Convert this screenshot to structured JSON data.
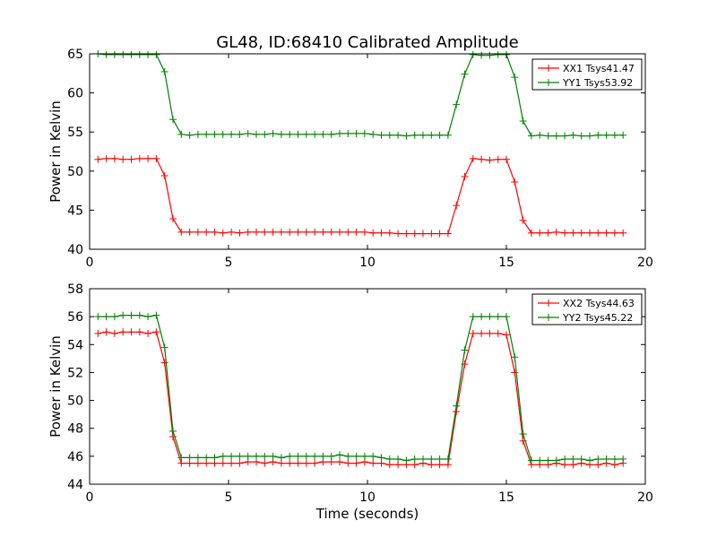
{
  "title": "GL48, ID:68410 Calibrated Amplitude",
  "xlabel": "Time (seconds)",
  "colors": {
    "red": "#ff0000",
    "green": "#008000"
  },
  "chart_data": [
    {
      "type": "line",
      "title": "GL48, ID:68410 Calibrated Amplitude",
      "xlabel": "",
      "ylabel": "Power in Kelvin",
      "xlim": [
        0,
        20
      ],
      "ylim": [
        40,
        65
      ],
      "xticks": [
        0,
        5,
        10,
        15,
        20
      ],
      "yticks": [
        40,
        45,
        50,
        55,
        60,
        65
      ],
      "grid": false,
      "legend": "top-right",
      "series": [
        {
          "name": "XX1 Tsys41.47",
          "color": "#ff0000",
          "x": [
            0.3,
            0.6,
            0.9,
            1.2,
            1.5,
            1.8,
            2.1,
            2.4,
            2.7,
            3.0,
            3.3,
            3.6,
            3.9,
            4.2,
            4.5,
            4.8,
            5.1,
            5.4,
            5.7,
            6.0,
            6.3,
            6.6,
            6.9,
            7.2,
            7.5,
            7.8,
            8.1,
            8.4,
            8.7,
            9.0,
            9.3,
            9.6,
            9.9,
            10.2,
            10.5,
            10.8,
            11.1,
            11.4,
            11.7,
            12.0,
            12.3,
            12.6,
            12.9,
            13.2,
            13.5,
            13.8,
            14.1,
            14.4,
            14.7,
            15.0,
            15.3,
            15.6,
            15.9,
            16.2,
            16.5,
            16.8,
            17.1,
            17.4,
            17.7,
            18.0,
            18.3,
            18.6,
            18.9,
            19.2
          ],
          "y": [
            51.5,
            51.6,
            51.6,
            51.5,
            51.5,
            51.6,
            51.6,
            51.6,
            49.4,
            43.9,
            42.2,
            42.2,
            42.2,
            42.2,
            42.2,
            42.1,
            42.2,
            42.1,
            42.2,
            42.2,
            42.2,
            42.2,
            42.2,
            42.2,
            42.2,
            42.2,
            42.2,
            42.2,
            42.2,
            42.2,
            42.2,
            42.2,
            42.2,
            42.1,
            42.1,
            42.1,
            42.0,
            42.0,
            42.0,
            42.0,
            42.0,
            42.0,
            42.0,
            45.6,
            49.3,
            51.6,
            51.5,
            51.4,
            51.5,
            51.5,
            48.6,
            43.7,
            42.1,
            42.1,
            42.1,
            42.2,
            42.1,
            42.1,
            42.1,
            42.1,
            42.1,
            42.1,
            42.1,
            42.1
          ]
        },
        {
          "name": "YY1 Tsys53.92",
          "color": "#008000",
          "x": [
            0.3,
            0.6,
            0.9,
            1.2,
            1.5,
            1.8,
            2.1,
            2.4,
            2.7,
            3.0,
            3.3,
            3.6,
            3.9,
            4.2,
            4.5,
            4.8,
            5.1,
            5.4,
            5.7,
            6.0,
            6.3,
            6.6,
            6.9,
            7.2,
            7.5,
            7.8,
            8.1,
            8.4,
            8.7,
            9.0,
            9.3,
            9.6,
            9.9,
            10.2,
            10.5,
            10.8,
            11.1,
            11.4,
            11.7,
            12.0,
            12.3,
            12.6,
            12.9,
            13.2,
            13.5,
            13.8,
            14.1,
            14.4,
            14.7,
            15.0,
            15.3,
            15.6,
            15.9,
            16.2,
            16.5,
            16.8,
            17.1,
            17.4,
            17.7,
            18.0,
            18.3,
            18.6,
            18.9,
            19.2
          ],
          "y": [
            65.0,
            64.9,
            64.9,
            64.9,
            64.9,
            64.9,
            64.9,
            64.9,
            62.7,
            56.6,
            54.7,
            54.6,
            54.7,
            54.7,
            54.7,
            54.7,
            54.7,
            54.7,
            54.8,
            54.7,
            54.7,
            54.8,
            54.7,
            54.7,
            54.7,
            54.7,
            54.7,
            54.7,
            54.7,
            54.8,
            54.8,
            54.8,
            54.8,
            54.7,
            54.6,
            54.6,
            54.6,
            54.5,
            54.6,
            54.6,
            54.6,
            54.6,
            54.6,
            58.5,
            62.4,
            64.9,
            64.8,
            64.8,
            64.9,
            64.9,
            62.0,
            56.4,
            54.5,
            54.6,
            54.5,
            54.5,
            54.5,
            54.6,
            54.5,
            54.5,
            54.6,
            54.6,
            54.6,
            54.6
          ]
        }
      ]
    },
    {
      "type": "line",
      "title": "",
      "xlabel": "Time (seconds)",
      "ylabel": "Power in Kelvin",
      "xlim": [
        0,
        20
      ],
      "ylim": [
        44,
        58
      ],
      "xticks": [
        0,
        5,
        10,
        15,
        20
      ],
      "yticks": [
        44,
        46,
        48,
        50,
        52,
        54,
        56,
        58
      ],
      "grid": false,
      "legend": "top-right",
      "series": [
        {
          "name": "XX2 Tsys44.63",
          "color": "#ff0000",
          "x": [
            0.3,
            0.6,
            0.9,
            1.2,
            1.5,
            1.8,
            2.1,
            2.4,
            2.7,
            3.0,
            3.3,
            3.6,
            3.9,
            4.2,
            4.5,
            4.8,
            5.1,
            5.4,
            5.7,
            6.0,
            6.3,
            6.6,
            6.9,
            7.2,
            7.5,
            7.8,
            8.1,
            8.4,
            8.7,
            9.0,
            9.3,
            9.6,
            9.9,
            10.2,
            10.5,
            10.8,
            11.1,
            11.4,
            11.7,
            12.0,
            12.3,
            12.6,
            12.9,
            13.2,
            13.5,
            13.8,
            14.1,
            14.4,
            14.7,
            15.0,
            15.3,
            15.6,
            15.9,
            16.2,
            16.5,
            16.8,
            17.1,
            17.4,
            17.7,
            18.0,
            18.3,
            18.6,
            18.9,
            19.2
          ],
          "y": [
            54.8,
            54.9,
            54.8,
            54.9,
            54.9,
            54.9,
            54.8,
            54.9,
            52.7,
            47.4,
            45.5,
            45.5,
            45.5,
            45.5,
            45.5,
            45.5,
            45.5,
            45.5,
            45.6,
            45.6,
            45.5,
            45.6,
            45.5,
            45.5,
            45.5,
            45.5,
            45.5,
            45.6,
            45.6,
            45.6,
            45.5,
            45.5,
            45.6,
            45.5,
            45.5,
            45.4,
            45.4,
            45.4,
            45.4,
            45.5,
            45.4,
            45.4,
            45.4,
            49.2,
            52.6,
            54.8,
            54.8,
            54.8,
            54.8,
            54.7,
            52.0,
            47.1,
            45.4,
            45.4,
            45.4,
            45.5,
            45.4,
            45.4,
            45.5,
            45.4,
            45.4,
            45.5,
            45.4,
            45.5
          ]
        },
        {
          "name": "YY2 Tsys45.22",
          "color": "#008000",
          "x": [
            0.3,
            0.6,
            0.9,
            1.2,
            1.5,
            1.8,
            2.1,
            2.4,
            2.7,
            3.0,
            3.3,
            3.6,
            3.9,
            4.2,
            4.5,
            4.8,
            5.1,
            5.4,
            5.7,
            6.0,
            6.3,
            6.6,
            6.9,
            7.2,
            7.5,
            7.8,
            8.1,
            8.4,
            8.7,
            9.0,
            9.3,
            9.6,
            9.9,
            10.2,
            10.5,
            10.8,
            11.1,
            11.4,
            11.7,
            12.0,
            12.3,
            12.6,
            12.9,
            13.2,
            13.5,
            13.8,
            14.1,
            14.4,
            14.7,
            15.0,
            15.3,
            15.6,
            15.9,
            16.2,
            16.5,
            16.8,
            17.1,
            17.4,
            17.7,
            18.0,
            18.3,
            18.6,
            18.9,
            19.2
          ],
          "y": [
            56.0,
            56.0,
            56.0,
            56.1,
            56.1,
            56.1,
            56.0,
            56.1,
            53.8,
            47.8,
            45.9,
            45.9,
            45.9,
            45.9,
            45.9,
            46.0,
            46.0,
            46.0,
            46.0,
            46.0,
            46.0,
            46.0,
            45.9,
            46.0,
            46.0,
            46.0,
            46.0,
            46.0,
            46.0,
            46.1,
            46.0,
            46.0,
            46.0,
            46.0,
            45.9,
            45.8,
            45.8,
            45.7,
            45.8,
            45.8,
            45.8,
            45.8,
            45.8,
            49.6,
            53.6,
            56.0,
            56.0,
            56.0,
            56.0,
            56.0,
            53.1,
            47.6,
            45.7,
            45.7,
            45.7,
            45.7,
            45.8,
            45.8,
            45.8,
            45.7,
            45.8,
            45.8,
            45.8,
            45.8
          ]
        }
      ]
    }
  ]
}
